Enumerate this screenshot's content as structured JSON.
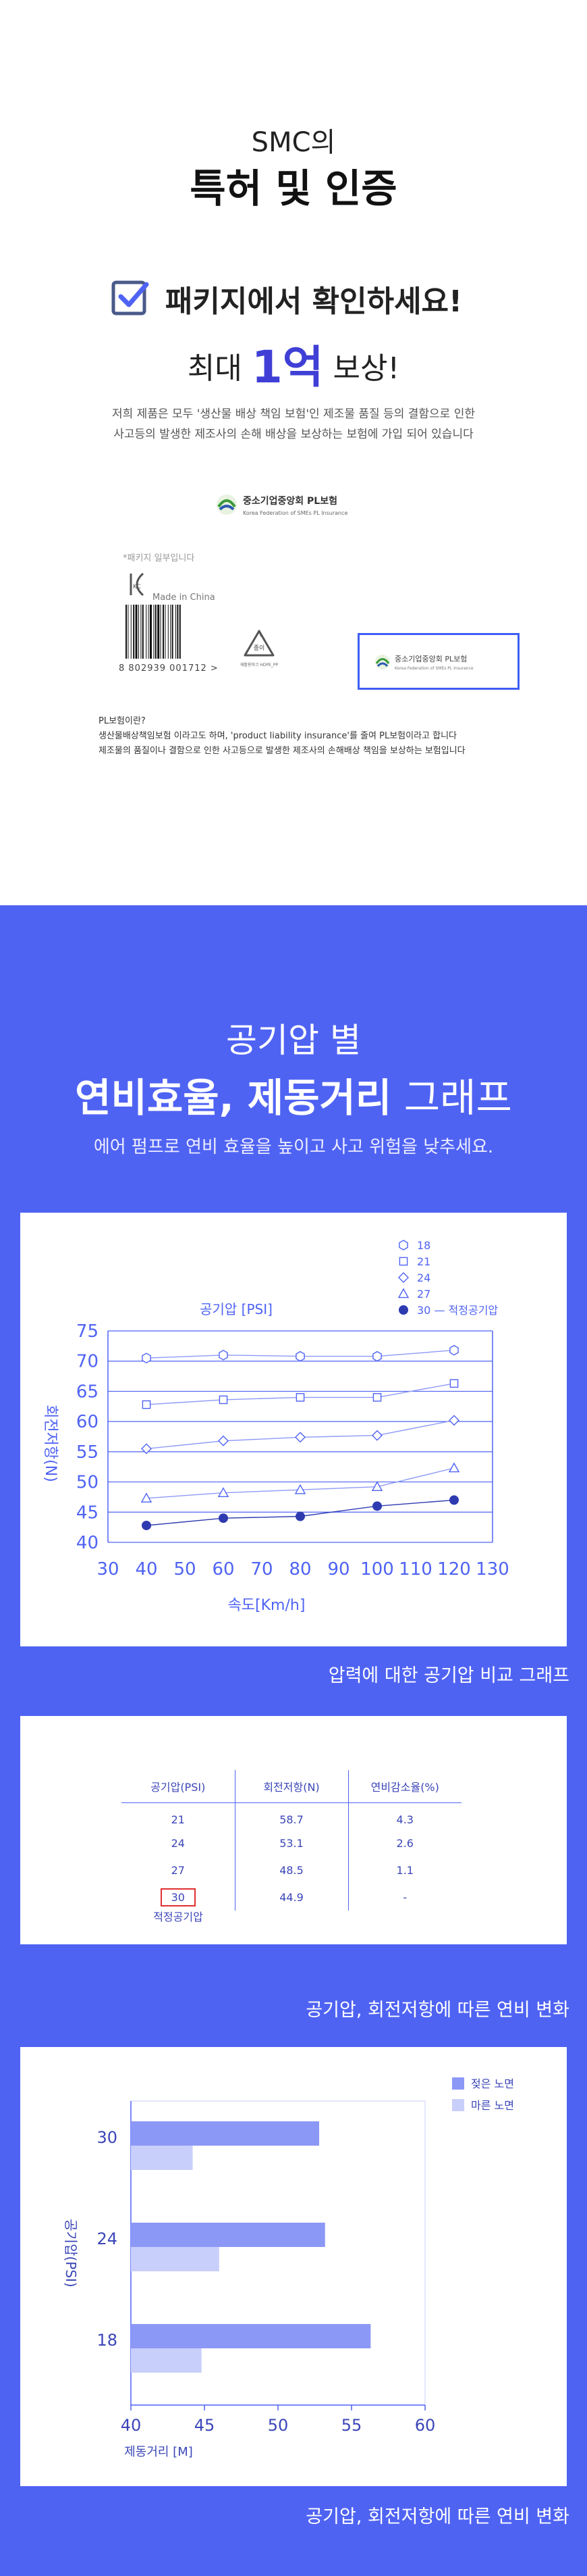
{
  "header": {
    "brand": "SMC의",
    "title": "특허 및 인증",
    "package_line": "패키지에서 확인하세요!",
    "reward_prefix": "최대 ",
    "reward_number": "1억",
    "reward_suffix": " 보상!",
    "description_line1": "저희 제품은 모두 '생산물 배상 책임 보험'인 제조물 품질 등의 결함으로 인한",
    "description_line2": "사고등의 발생한 제조사의 손해 배상을 보상하는 보험에 가입 되어 있습니다"
  },
  "certification": {
    "pl_org_name": "중소기업중앙회 PL보험",
    "pl_org_sub": "Korea Federation of SMEs PL Insurance",
    "package_note": "*패키지 일부입니다",
    "kc_mark": "KC",
    "made_in": "Made in China",
    "barcode_number": "8 802939 001712 >",
    "recycle_label": "종이",
    "recycle_sub": "재활용마크 HDPE_PP",
    "pl_box_name": "중소기업중앙회 PL보험",
    "pl_box_sub": "Korea Federation of SMEs PL Insurance",
    "pl_heading": "PL보험이란?",
    "pl_text_line1": "생산물배상책임보험 이라고도 하며, 'product liability insurance'를 줄여 PL보험이라고 합니다",
    "pl_text_line2": "제조물의 품질이나 결함으로 인한 사고등으로 발생한 제조사의 손해배상 책임을 보상하는 보험입니다"
  },
  "section2": {
    "subtitle": "공기압 별",
    "title_bold": "연비효율, 제동거리",
    "title_light": " 그래프",
    "description": "에어 펌프로 연비 효율을 높이고 사고 위험을 낮추세요.",
    "caption1": "압력에 대한 공기압 비교 그래프",
    "caption2": "공기압, 회전저항에 따른 연비 변화",
    "caption3": "공기압, 회전저항에 따른 연비 변화"
  },
  "table": {
    "headers": [
      "공기압(PSI)",
      "회전저항(N)",
      "연비감소율(%)"
    ],
    "rows": [
      [
        "21",
        "58.7",
        "4.3"
      ],
      [
        "24",
        "53.1",
        "2.6"
      ],
      [
        "27",
        "48.5",
        "1.1"
      ],
      [
        "30",
        "44.9",
        "-"
      ]
    ],
    "optimal_label": "적정공기압"
  },
  "chart_data": [
    {
      "type": "line",
      "title": "공기압 [PSI]",
      "xlabel": "속도[Km/h]",
      "ylabel": "회전저항(N)",
      "x": [
        40,
        60,
        80,
        100,
        120
      ],
      "xlim": [
        30,
        130
      ],
      "ylim": [
        40,
        75
      ],
      "xticks": [
        30,
        40,
        50,
        60,
        70,
        80,
        90,
        100,
        110,
        120,
        130
      ],
      "yticks": [
        40,
        45,
        50,
        55,
        60,
        65,
        70,
        75
      ],
      "grid": true,
      "legend_position": "top-right",
      "series": [
        {
          "name": "18",
          "marker": "hexagon",
          "values": [
            70.5,
            71,
            70.8,
            70.8,
            71.8
          ]
        },
        {
          "name": "21",
          "marker": "square",
          "values": [
            62.8,
            63.6,
            64,
            64,
            66.3
          ]
        },
        {
          "name": "24",
          "marker": "diamond",
          "values": [
            55.5,
            56.8,
            57.4,
            57.7,
            60.2
          ]
        },
        {
          "name": "27",
          "marker": "triangle",
          "values": [
            47.3,
            48.2,
            48.7,
            49.2,
            52.3
          ]
        },
        {
          "name": "30 — 적정공기압",
          "marker": "filled-circle",
          "values": [
            42.8,
            44,
            44.3,
            46,
            47
          ]
        }
      ],
      "color": "#4f63f3"
    },
    {
      "type": "bar",
      "orientation": "horizontal",
      "ylabel": "공기압(PSI)",
      "xlabel": "제동거리 [M]",
      "categories": [
        "30",
        "24",
        "18"
      ],
      "xlim": [
        40,
        60
      ],
      "xticks": [
        40,
        45,
        50,
        55,
        60
      ],
      "legend_position": "top-right",
      "series": [
        {
          "name": "젖은 노면",
          "color": "#8c98f6",
          "values": [
            52.8,
            53.2,
            56.3
          ]
        },
        {
          "name": "마른 노면",
          "color": "#c9cffb",
          "values": [
            44.2,
            46,
            44.8
          ]
        }
      ]
    }
  ]
}
